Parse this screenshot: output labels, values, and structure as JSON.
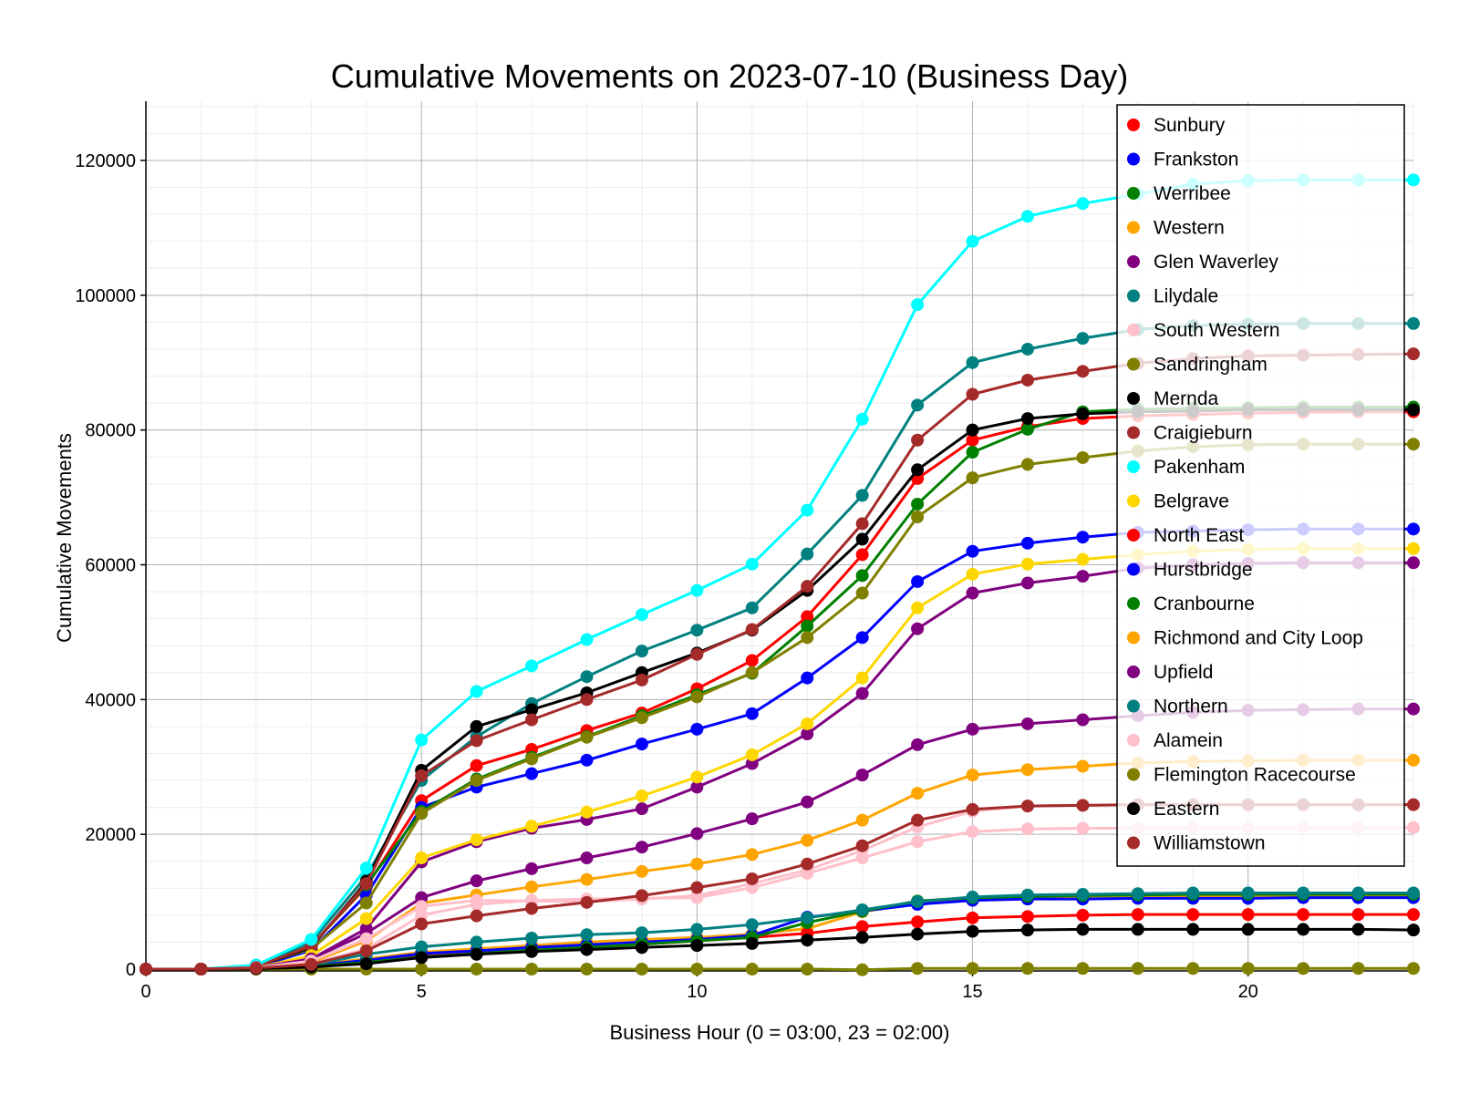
{
  "chart_data": {
    "type": "line",
    "title": "Cumulative Movements on 2023-07-10 (Business Day)",
    "xlabel": "Business Hour (0 = 03:00, 23 = 02:00)",
    "ylabel": "Cumulative Movements",
    "xlim": [
      0,
      23
    ],
    "ylim": [
      -500,
      128000
    ],
    "x_ticks": [
      0,
      5,
      10,
      15,
      20
    ],
    "y_ticks": [
      0,
      20000,
      40000,
      60000,
      80000,
      100000,
      120000
    ],
    "grid": true,
    "legend_position": "top-right",
    "x": [
      0,
      1,
      2,
      3,
      4,
      5,
      6,
      7,
      8,
      9,
      10,
      11,
      12,
      13,
      14,
      15,
      16,
      17,
      18,
      19,
      20,
      21,
      22,
      23
    ],
    "series": [
      {
        "name": "Sunbury",
        "color": "#ff0000",
        "values": [
          0,
          0,
          500,
          3500,
          12200,
          25000,
          30200,
          32600,
          35400,
          38000,
          41600,
          45800,
          52300,
          61500,
          72800,
          78500,
          80500,
          81700,
          82100,
          82300,
          82500,
          82600,
          82700,
          82700
        ]
      },
      {
        "name": "Frankston",
        "color": "#0000ff",
        "values": [
          0,
          0,
          300,
          2800,
          11000,
          24000,
          27000,
          29000,
          31000,
          33400,
          35600,
          37900,
          43200,
          49200,
          57500,
          62000,
          63200,
          64100,
          64800,
          65000,
          65200,
          65300,
          65300,
          65300
        ]
      },
      {
        "name": "Werribee",
        "color": "#008000",
        "values": [
          0,
          0,
          500,
          3400,
          12500,
          23400,
          28200,
          31400,
          34500,
          37600,
          40700,
          43900,
          50900,
          58400,
          69000,
          76700,
          80100,
          82700,
          83100,
          83200,
          83300,
          83400,
          83400,
          83400
        ]
      },
      {
        "name": "Western",
        "color": "#ffa500",
        "values": [
          0,
          0,
          100,
          600,
          1500,
          2500,
          3000,
          3500,
          4000,
          4400,
          4700,
          5200,
          6000,
          8500,
          9800,
          10300,
          10500,
          10600,
          10700,
          10700,
          10700,
          10700,
          10700,
          10700
        ]
      },
      {
        "name": "Glen Waverley",
        "color": "#800080",
        "values": [
          0,
          0,
          200,
          1500,
          6000,
          15900,
          18900,
          20900,
          22200,
          23800,
          27000,
          30500,
          34900,
          40900,
          50500,
          55800,
          57300,
          58300,
          59500,
          60000,
          60200,
          60300,
          60300,
          60300
        ]
      },
      {
        "name": "Lilydale",
        "color": "#008080",
        "values": [
          0,
          0,
          600,
          4000,
          13800,
          28000,
          34500,
          39400,
          43400,
          47200,
          50300,
          53600,
          61600,
          70300,
          83700,
          90000,
          92000,
          93600,
          94900,
          95500,
          95700,
          95800,
          95800,
          95800
        ]
      },
      {
        "name": "South Western",
        "color": "#ffc0cb",
        "values": [
          0,
          0,
          100,
          800,
          3000,
          8000,
          9600,
          10200,
          10400,
          10500,
          10600,
          12100,
          14200,
          16500,
          18900,
          20400,
          20800,
          20900,
          20900,
          21000,
          21000,
          21000,
          21000,
          21000
        ]
      },
      {
        "name": "Sandringham",
        "color": "#808000",
        "values": [
          0,
          0,
          500,
          3000,
          9800,
          23100,
          28000,
          31200,
          34400,
          37300,
          40400,
          44000,
          49200,
          55800,
          67100,
          72900,
          74900,
          75900,
          76900,
          77500,
          77800,
          77900,
          77900,
          77900
        ]
      },
      {
        "name": "Mernda",
        "color": "#000000",
        "values": [
          0,
          0,
          400,
          3200,
          13000,
          29500,
          36000,
          38500,
          41000,
          44000,
          46900,
          50300,
          56200,
          63800,
          74100,
          80000,
          81700,
          82400,
          82700,
          82800,
          83000,
          83000,
          83000,
          83000
        ]
      },
      {
        "name": "Craigieburn",
        "color": "#a52a2a",
        "values": [
          0,
          0,
          400,
          3400,
          12700,
          28700,
          33900,
          37000,
          40000,
          42900,
          46700,
          50400,
          56800,
          66100,
          78500,
          85300,
          87400,
          88700,
          89900,
          90600,
          91000,
          91100,
          91200,
          91300
        ]
      },
      {
        "name": "Pakenham",
        "color": "#00ffff",
        "values": [
          0,
          0,
          600,
          4400,
          15000,
          34000,
          41200,
          45000,
          48900,
          52600,
          56200,
          60100,
          68100,
          81600,
          98600,
          108000,
          111700,
          113600,
          115000,
          116500,
          117000,
          117100,
          117100,
          117100
        ]
      },
      {
        "name": "Belgrave",
        "color": "#ffd700",
        "values": [
          0,
          0,
          200,
          2000,
          7500,
          16500,
          19200,
          21200,
          23300,
          25700,
          28500,
          31800,
          36400,
          43200,
          53600,
          58600,
          60100,
          60800,
          61500,
          62000,
          62300,
          62400,
          62400,
          62400
        ]
      },
      {
        "name": "North East",
        "color": "#ff0000",
        "values": [
          0,
          0,
          50,
          300,
          1000,
          1900,
          2300,
          2800,
          3200,
          3700,
          4200,
          4700,
          5300,
          6300,
          7000,
          7600,
          7800,
          8000,
          8100,
          8100,
          8100,
          8100,
          8100,
          8100
        ]
      },
      {
        "name": "Hurstbridge",
        "color": "#0000ff",
        "values": [
          0,
          0,
          80,
          500,
          1300,
          2300,
          2700,
          3200,
          3600,
          4000,
          4400,
          5000,
          7700,
          8600,
          9600,
          10200,
          10400,
          10400,
          10500,
          10500,
          10500,
          10600,
          10600,
          10600
        ]
      },
      {
        "name": "Cranbourne",
        "color": "#008000",
        "values": [
          0,
          0,
          50,
          400,
          1000,
          1800,
          2300,
          2800,
          3200,
          3700,
          4200,
          4700,
          6900,
          8600,
          10100,
          10600,
          10800,
          10900,
          11000,
          11100,
          11100,
          11100,
          11100,
          11100
        ]
      },
      {
        "name": "Richmond and City Loop",
        "color": "#ffa500",
        "values": [
          0,
          0,
          200,
          1000,
          4200,
          9800,
          11000,
          12200,
          13300,
          14500,
          15600,
          17000,
          19100,
          22100,
          26100,
          28800,
          29600,
          30100,
          30600,
          30800,
          30900,
          31000,
          31000,
          31000
        ]
      },
      {
        "name": "Upfield",
        "color": "#800080",
        "values": [
          0,
          0,
          250,
          1500,
          5300,
          10600,
          13100,
          14900,
          16500,
          18100,
          20100,
          22300,
          24800,
          28800,
          33300,
          35600,
          36400,
          37000,
          37600,
          38100,
          38400,
          38500,
          38600,
          38600
        ]
      },
      {
        "name": "Northern",
        "color": "#008080",
        "values": [
          0,
          0,
          100,
          600,
          2200,
          3300,
          4000,
          4600,
          5100,
          5400,
          5900,
          6600,
          7600,
          8800,
          10000,
          10700,
          11000,
          11100,
          11200,
          11300,
          11300,
          11300,
          11300,
          11300
        ]
      },
      {
        "name": "Alamein",
        "color": "#ffc0cb",
        "values": [
          0,
          0,
          200,
          1200,
          4500,
          9300,
          10200,
          10100,
          10000,
          10400,
          10900,
          12700,
          14700,
          17600,
          21100,
          23400,
          24200,
          24300,
          24400,
          24400,
          24400,
          24400,
          24400,
          24400
        ]
      },
      {
        "name": "Flemington Racecourse",
        "color": "#808000",
        "values": [
          0,
          0,
          0,
          0,
          0,
          0,
          0,
          0,
          0,
          0,
          0,
          0,
          0,
          -100,
          100,
          100,
          100,
          100,
          100,
          100,
          100,
          100,
          100,
          100
        ]
      },
      {
        "name": "Eastern",
        "color": "#000000",
        "values": [
          0,
          0,
          50,
          300,
          800,
          1700,
          2200,
          2600,
          2900,
          3200,
          3500,
          3800,
          4300,
          4700,
          5200,
          5600,
          5800,
          5900,
          5900,
          5900,
          5900,
          5900,
          5900,
          5800
        ]
      },
      {
        "name": "Williamstown",
        "color": "#a52a2a",
        "values": [
          0,
          0,
          150,
          700,
          2700,
          6700,
          7900,
          9000,
          9900,
          10900,
          12100,
          13400,
          15600,
          18300,
          22100,
          23700,
          24200,
          24300,
          24400,
          24400,
          24400,
          24400,
          24400,
          24400
        ]
      }
    ]
  }
}
